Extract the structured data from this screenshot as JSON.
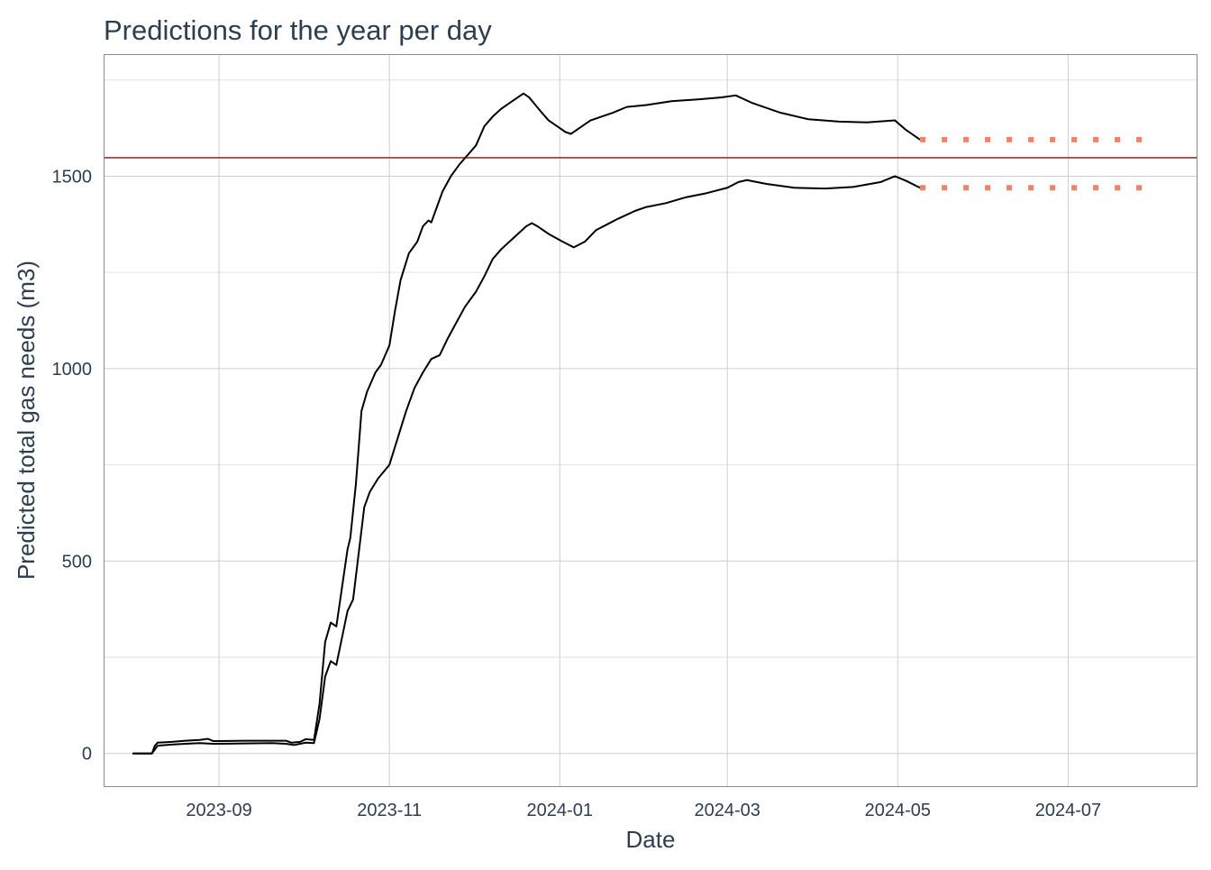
{
  "colors": {
    "series": "#000000",
    "projection": "#f0826a",
    "reference_line": "#8b3a2a",
    "text": "#2c3e50"
  },
  "chart_data": {
    "type": "line",
    "title": "Predictions for the year per day",
    "xlabel": "Date",
    "ylabel": "Predicted total gas needs (m3)",
    "x_ticks": [
      "2023-09",
      "2023-11",
      "2024-01",
      "2024-03",
      "2024-05",
      "2024-07"
    ],
    "y_ticks": [
      "0",
      "500",
      "1000",
      "1500"
    ],
    "xlim": [
      "2023-07-22",
      "2024-08-16"
    ],
    "ylim": [
      -85,
      1815
    ],
    "grid": true,
    "reference_line": {
      "y": 1548
    },
    "series": [
      {
        "style": "solid",
        "points": [
          [
            "2023-08-01",
            0
          ],
          [
            "2023-08-08",
            0
          ],
          [
            "2023-08-09",
            20
          ],
          [
            "2023-08-10",
            28
          ],
          [
            "2023-08-15",
            30
          ],
          [
            "2023-08-20",
            33
          ],
          [
            "2023-08-25",
            35
          ],
          [
            "2023-08-28",
            38
          ],
          [
            "2023-08-30",
            32
          ],
          [
            "2023-09-10",
            33
          ],
          [
            "2023-09-20",
            33
          ],
          [
            "2023-09-25",
            33
          ],
          [
            "2023-09-27",
            28
          ],
          [
            "2023-09-30",
            30
          ],
          [
            "2023-10-02",
            37
          ],
          [
            "2023-10-05",
            35
          ],
          [
            "2023-10-07",
            130
          ],
          [
            "2023-10-09",
            290
          ],
          [
            "2023-10-11",
            340
          ],
          [
            "2023-10-13",
            330
          ],
          [
            "2023-10-15",
            430
          ],
          [
            "2023-10-17",
            530
          ],
          [
            "2023-10-18",
            560
          ],
          [
            "2023-10-20",
            700
          ],
          [
            "2023-10-22",
            890
          ],
          [
            "2023-10-24",
            940
          ],
          [
            "2023-10-27",
            990
          ],
          [
            "2023-10-29",
            1010
          ],
          [
            "2023-11-01",
            1060
          ],
          [
            "2023-11-03",
            1150
          ],
          [
            "2023-11-05",
            1230
          ],
          [
            "2023-11-08",
            1300
          ],
          [
            "2023-11-11",
            1330
          ],
          [
            "2023-11-13",
            1370
          ],
          [
            "2023-11-15",
            1385
          ],
          [
            "2023-11-16",
            1380
          ],
          [
            "2023-11-18",
            1420
          ],
          [
            "2023-11-20",
            1460
          ],
          [
            "2023-11-23",
            1500
          ],
          [
            "2023-11-26",
            1530
          ],
          [
            "2023-11-29",
            1555
          ],
          [
            "2023-12-02",
            1580
          ],
          [
            "2023-12-05",
            1630
          ],
          [
            "2023-12-08",
            1655
          ],
          [
            "2023-12-11",
            1675
          ],
          [
            "2023-12-14",
            1690
          ],
          [
            "2023-12-17",
            1705
          ],
          [
            "2023-12-19",
            1715
          ],
          [
            "2023-12-21",
            1705
          ],
          [
            "2023-12-25",
            1670
          ],
          [
            "2023-12-28",
            1645
          ],
          [
            "2024-01-01",
            1625
          ],
          [
            "2024-01-03",
            1615
          ],
          [
            "2024-01-05",
            1610
          ],
          [
            "2024-01-08",
            1625
          ],
          [
            "2024-01-12",
            1645
          ],
          [
            "2024-01-16",
            1655
          ],
          [
            "2024-01-20",
            1665
          ],
          [
            "2024-01-25",
            1680
          ],
          [
            "2024-02-01",
            1685
          ],
          [
            "2024-02-10",
            1695
          ],
          [
            "2024-02-20",
            1700
          ],
          [
            "2024-02-28",
            1705
          ],
          [
            "2024-03-04",
            1710
          ],
          [
            "2024-03-10",
            1690
          ],
          [
            "2024-03-20",
            1665
          ],
          [
            "2024-03-30",
            1648
          ],
          [
            "2024-04-10",
            1642
          ],
          [
            "2024-04-20",
            1640
          ],
          [
            "2024-04-30",
            1645
          ],
          [
            "2024-05-04",
            1620
          ],
          [
            "2024-05-09",
            1595
          ]
        ]
      },
      {
        "style": "solid",
        "points": [
          [
            "2023-08-01",
            0
          ],
          [
            "2023-08-08",
            0
          ],
          [
            "2023-08-10",
            20
          ],
          [
            "2023-08-15",
            23
          ],
          [
            "2023-08-20",
            25
          ],
          [
            "2023-08-25",
            27
          ],
          [
            "2023-08-30",
            25
          ],
          [
            "2023-09-10",
            26
          ],
          [
            "2023-09-20",
            27
          ],
          [
            "2023-09-25",
            25
          ],
          [
            "2023-09-28",
            22
          ],
          [
            "2023-10-02",
            28
          ],
          [
            "2023-10-05",
            27
          ],
          [
            "2023-10-07",
            90
          ],
          [
            "2023-10-09",
            200
          ],
          [
            "2023-10-11",
            240
          ],
          [
            "2023-10-13",
            230
          ],
          [
            "2023-10-15",
            300
          ],
          [
            "2023-10-17",
            370
          ],
          [
            "2023-10-19",
            400
          ],
          [
            "2023-10-21",
            520
          ],
          [
            "2023-10-23",
            640
          ],
          [
            "2023-10-25",
            680
          ],
          [
            "2023-10-28",
            715
          ],
          [
            "2023-11-01",
            750
          ],
          [
            "2023-11-04",
            820
          ],
          [
            "2023-11-07",
            890
          ],
          [
            "2023-11-10",
            950
          ],
          [
            "2023-11-13",
            990
          ],
          [
            "2023-11-16",
            1025
          ],
          [
            "2023-11-19",
            1035
          ],
          [
            "2023-11-22",
            1080
          ],
          [
            "2023-11-25",
            1120
          ],
          [
            "2023-11-28",
            1160
          ],
          [
            "2023-12-02",
            1200
          ],
          [
            "2023-12-05",
            1240
          ],
          [
            "2023-12-08",
            1285
          ],
          [
            "2023-12-11",
            1310
          ],
          [
            "2023-12-14",
            1330
          ],
          [
            "2023-12-17",
            1350
          ],
          [
            "2023-12-20",
            1370
          ],
          [
            "2023-12-22",
            1378
          ],
          [
            "2023-12-24",
            1370
          ],
          [
            "2023-12-28",
            1350
          ],
          [
            "2024-01-02",
            1330
          ],
          [
            "2024-01-06",
            1315
          ],
          [
            "2024-01-10",
            1330
          ],
          [
            "2024-01-14",
            1360
          ],
          [
            "2024-01-18",
            1375
          ],
          [
            "2024-01-22",
            1390
          ],
          [
            "2024-01-28",
            1410
          ],
          [
            "2024-02-01",
            1420
          ],
          [
            "2024-02-08",
            1430
          ],
          [
            "2024-02-15",
            1445
          ],
          [
            "2024-02-22",
            1455
          ],
          [
            "2024-03-01",
            1470
          ],
          [
            "2024-03-05",
            1485
          ],
          [
            "2024-03-08",
            1490
          ],
          [
            "2024-03-15",
            1480
          ],
          [
            "2024-03-25",
            1470
          ],
          [
            "2024-04-05",
            1468
          ],
          [
            "2024-04-15",
            1472
          ],
          [
            "2024-04-25",
            1485
          ],
          [
            "2024-04-30",
            1500
          ],
          [
            "2024-05-04",
            1488
          ],
          [
            "2024-05-09",
            1470
          ]
        ]
      },
      {
        "style": "dotted",
        "points": [
          [
            "2024-05-09",
            1595
          ],
          [
            "2024-07-30",
            1595
          ]
        ]
      },
      {
        "style": "dotted",
        "points": [
          [
            "2024-05-09",
            1470
          ],
          [
            "2024-07-30",
            1470
          ]
        ]
      }
    ]
  }
}
